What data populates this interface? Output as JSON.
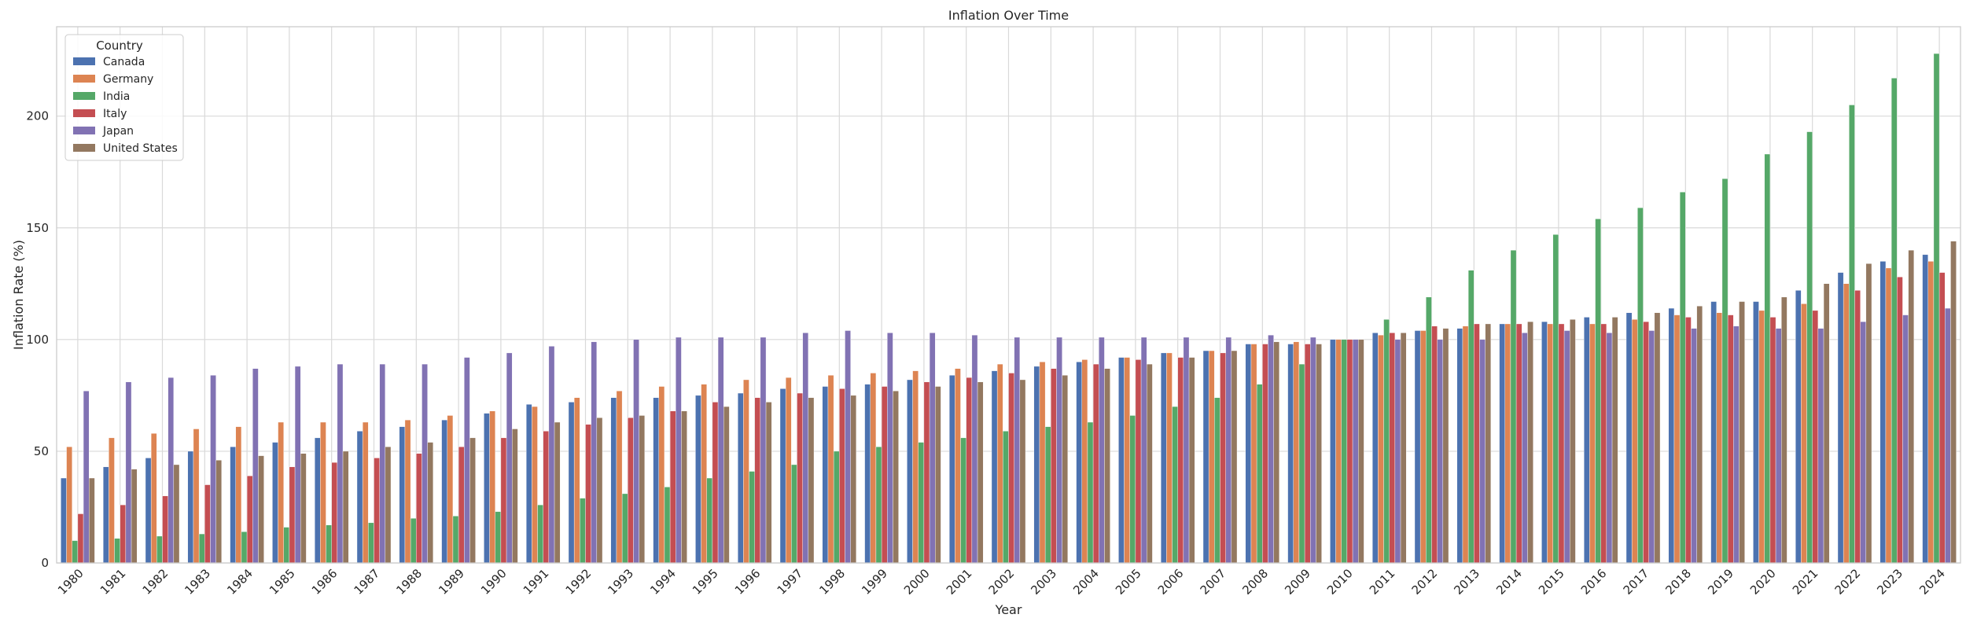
{
  "chart_data": {
    "type": "bar",
    "title": "Inflation Over Time",
    "xlabel": "Year",
    "ylabel": "Inflation Rate (%)",
    "ylim": [
      0,
      240
    ],
    "yticks": [
      0,
      50,
      100,
      150,
      200
    ],
    "grid": true,
    "legend": {
      "title": "Country",
      "placement": "top-left"
    },
    "categories": [
      "1980",
      "1981",
      "1982",
      "1983",
      "1984",
      "1985",
      "1986",
      "1987",
      "1988",
      "1989",
      "1990",
      "1991",
      "1992",
      "1993",
      "1994",
      "1995",
      "1996",
      "1997",
      "1998",
      "1999",
      "2000",
      "2001",
      "2002",
      "2003",
      "2004",
      "2005",
      "2006",
      "2007",
      "2008",
      "2009",
      "2010",
      "2011",
      "2012",
      "2013",
      "2014",
      "2015",
      "2016",
      "2017",
      "2018",
      "2019",
      "2020",
      "2021",
      "2022",
      "2023",
      "2024"
    ],
    "series": [
      {
        "name": "Canada",
        "color": "#4c72b0",
        "values": [
          38,
          43,
          47,
          50,
          52,
          54,
          56,
          59,
          61,
          64,
          67,
          71,
          72,
          74,
          74,
          75,
          76,
          78,
          79,
          80,
          82,
          84,
          86,
          88,
          90,
          92,
          94,
          95,
          98,
          98,
          100,
          103,
          104,
          105,
          107,
          108,
          110,
          112,
          114,
          117,
          117,
          122,
          130,
          135,
          138
        ]
      },
      {
        "name": "Germany",
        "color": "#dd8452",
        "values": [
          52,
          56,
          58,
          60,
          61,
          63,
          63,
          63,
          64,
          66,
          68,
          70,
          74,
          77,
          79,
          80,
          82,
          83,
          84,
          85,
          86,
          87,
          89,
          90,
          91,
          92,
          94,
          95,
          98,
          99,
          100,
          102,
          104,
          106,
          107,
          107,
          107,
          109,
          111,
          112,
          113,
          116,
          125,
          132,
          135
        ]
      },
      {
        "name": "India",
        "color": "#55a868",
        "values": [
          10,
          11,
          12,
          13,
          14,
          16,
          17,
          18,
          20,
          21,
          23,
          26,
          29,
          31,
          34,
          38,
          41,
          44,
          50,
          52,
          54,
          56,
          59,
          61,
          63,
          66,
          70,
          74,
          80,
          89,
          100,
          109,
          119,
          131,
          140,
          147,
          154,
          159,
          166,
          172,
          183,
          193,
          205,
          217,
          228
        ]
      },
      {
        "name": "Italy",
        "color": "#c44e52",
        "values": [
          22,
          26,
          30,
          35,
          39,
          43,
          45,
          47,
          49,
          52,
          56,
          59,
          62,
          65,
          68,
          72,
          74,
          76,
          78,
          79,
          81,
          83,
          85,
          87,
          89,
          91,
          92,
          94,
          98,
          98,
          100,
          103,
          106,
          107,
          107,
          107,
          107,
          108,
          110,
          111,
          110,
          113,
          122,
          128,
          130
        ]
      },
      {
        "name": "Japan",
        "color": "#8172b3",
        "values": [
          77,
          81,
          83,
          84,
          87,
          88,
          89,
          89,
          89,
          92,
          94,
          97,
          99,
          100,
          101,
          101,
          101,
          103,
          104,
          103,
          103,
          102,
          101,
          101,
          101,
          101,
          101,
          101,
          102,
          101,
          100,
          100,
          100,
          100,
          103,
          104,
          103,
          104,
          105,
          106,
          105,
          105,
          108,
          111,
          114
        ]
      },
      {
        "name": "United States",
        "color": "#937860",
        "values": [
          38,
          42,
          44,
          46,
          48,
          49,
          50,
          52,
          54,
          56,
          60,
          63,
          65,
          66,
          68,
          70,
          72,
          74,
          75,
          77,
          79,
          81,
          82,
          84,
          87,
          89,
          92,
          95,
          99,
          98,
          100,
          103,
          105,
          107,
          108,
          109,
          110,
          112,
          115,
          117,
          119,
          125,
          134,
          140,
          144
        ]
      }
    ]
  }
}
